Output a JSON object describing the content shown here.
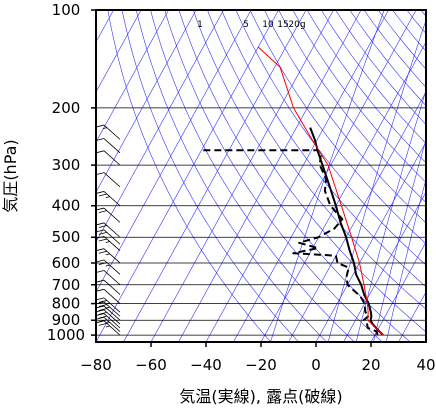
{
  "chart_data": {
    "type": "line",
    "xlabel": "気温(実線), 露点(破線)",
    "ylabel": "気圧(hPa)",
    "xlim": [
      -80,
      40
    ],
    "ylim": [
      1050,
      100
    ],
    "y_scale": "log",
    "x_ticks": [
      -80,
      -60,
      -40,
      -20,
      0,
      20,
      40
    ],
    "x_tick_labels": [
      "−80",
      "−60",
      "−40",
      "−20",
      "0",
      "20",
      "40"
    ],
    "y_ticks": [
      100,
      200,
      300,
      400,
      500,
      600,
      700,
      800,
      900,
      1000
    ],
    "y_tick_labels": [
      "100",
      "200",
      "300",
      "400",
      "500",
      "600",
      "700",
      "800",
      "900",
      "1000"
    ],
    "mixing_ratio_labels": [
      "1",
      "5",
      "10",
      "15",
      "20g"
    ],
    "mixing_ratio_values": [
      1,
      5,
      10,
      15,
      20
    ],
    "colors": {
      "temperature": "#000000",
      "dewpoint": "#000000",
      "parcel": "#ff0000",
      "background_lines": "#3333ff",
      "grid": "#000000"
    },
    "series": [
      {
        "values": [
          {
            "p": 1000,
            "t": 23
          },
          {
            "p": 975,
            "t": 21
          },
          {
            "p": 950,
            "t": 19
          },
          {
            "p": 925,
            "t": 17
          },
          {
            "p": 900,
            "t": 15.5
          },
          {
            "p": 875,
            "t": 15
          },
          {
            "p": 850,
            "t": 14
          },
          {
            "p": 800,
            "t": 11.5
          },
          {
            "p": 750,
            "t": 8
          },
          {
            "p": 700,
            "t": 5
          },
          {
            "p": 650,
            "t": 1
          },
          {
            "p": 600,
            "t": -2
          },
          {
            "p": 550,
            "t": -6
          },
          {
            "p": 500,
            "t": -10
          },
          {
            "p": 450,
            "t": -15
          },
          {
            "p": 400,
            "t": -20
          },
          {
            "p": 350,
            "t": -26
          },
          {
            "p": 300,
            "t": -33
          },
          {
            "p": 275,
            "t": -37
          },
          {
            "p": 250,
            "t": -41
          },
          {
            "p": 230,
            "t": -45
          }
        ]
      },
      {
        "dashed": true,
        "values": [
          {
            "p": 1000,
            "t": 21
          },
          {
            "p": 975,
            "t": 20
          },
          {
            "p": 950,
            "t": 16
          },
          {
            "p": 925,
            "t": 15
          },
          {
            "p": 900,
            "t": 13
          },
          {
            "p": 870,
            "t": 14
          },
          {
            "p": 850,
            "t": 12
          },
          {
            "p": 800,
            "t": 10
          },
          {
            "p": 760,
            "t": 7
          },
          {
            "p": 700,
            "t": 0
          },
          {
            "p": 660,
            "t": -2
          },
          {
            "p": 620,
            "t": -3
          },
          {
            "p": 600,
            "t": -8
          },
          {
            "p": 570,
            "t": -10
          },
          {
            "p": 560,
            "t": -26
          },
          {
            "p": 540,
            "t": -18
          },
          {
            "p": 520,
            "t": -26
          },
          {
            "p": 500,
            "t": -20
          },
          {
            "p": 470,
            "t": -16
          },
          {
            "p": 440,
            "t": -15
          },
          {
            "p": 400,
            "t": -22
          },
          {
            "p": 360,
            "t": -27
          },
          {
            "p": 330,
            "t": -29
          },
          {
            "p": 300,
            "t": -34
          },
          {
            "p": 275,
            "t": -36
          },
          {
            "p": 270,
            "t": -38
          },
          {
            "p": 270,
            "t": -80
          }
        ]
      },
      {
        "values": [
          {
            "p": 1000,
            "t": 23
          },
          {
            "p": 900,
            "t": 14.5
          },
          {
            "p": 850,
            "t": 13
          },
          {
            "p": 800,
            "t": 11
          },
          {
            "p": 700,
            "t": 6
          },
          {
            "p": 600,
            "t": 0
          },
          {
            "p": 500,
            "t": -8
          },
          {
            "p": 400,
            "t": -18
          },
          {
            "p": 300,
            "t": -31
          },
          {
            "p": 250,
            "t": -42
          },
          {
            "p": 200,
            "t": -55
          },
          {
            "p": 150,
            "t": -68
          },
          {
            "p": 130,
            "t": -80
          }
        ]
      }
    ],
    "wind_barbs": {
      "values": [
        {
          "p": 1000,
          "speed": 15,
          "dir": 30
        },
        {
          "p": 975,
          "speed": 15,
          "dir": 40
        },
        {
          "p": 950,
          "speed": 20,
          "dir": 40
        },
        {
          "p": 925,
          "speed": 20,
          "dir": 50
        },
        {
          "p": 900,
          "speed": 20,
          "dir": 40
        },
        {
          "p": 875,
          "speed": 15,
          "dir": 30
        },
        {
          "p": 850,
          "speed": 15,
          "dir": 20
        },
        {
          "p": 800,
          "speed": 10,
          "dir": 20
        },
        {
          "p": 750,
          "speed": 10,
          "dir": 10
        },
        {
          "p": 700,
          "speed": 10,
          "dir": 10
        },
        {
          "p": 650,
          "speed": 15,
          "dir": 20
        },
        {
          "p": 600,
          "speed": 15,
          "dir": 30
        },
        {
          "p": 550,
          "speed": 15,
          "dir": 20
        },
        {
          "p": 525,
          "speed": 20,
          "dir": 30
        },
        {
          "p": 500,
          "speed": 20,
          "dir": 40
        },
        {
          "p": 450,
          "speed": 20,
          "dir": 30
        },
        {
          "p": 400,
          "speed": 15,
          "dir": 20
        },
        {
          "p": 350,
          "speed": 10,
          "dir": 20
        },
        {
          "p": 300,
          "speed": 10,
          "dir": 10
        },
        {
          "p": 275,
          "speed": 10,
          "dir": 10
        },
        {
          "p": 250,
          "speed": 5,
          "dir": 0
        }
      ]
    }
  }
}
